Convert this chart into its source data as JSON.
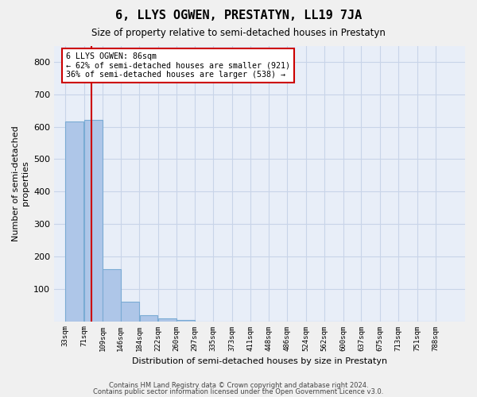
{
  "title": "6, LLYS OGWEN, PRESTATYN, LL19 7JA",
  "subtitle": "Size of property relative to semi-detached houses in Prestatyn",
  "xlabel": "Distribution of semi-detached houses by size in Prestatyn",
  "ylabel": "Number of semi-detached\nproperties",
  "bin_labels": [
    "33sqm",
    "71sqm",
    "109sqm",
    "146sqm",
    "184sqm",
    "222sqm",
    "260sqm",
    "297sqm",
    "335sqm",
    "373sqm",
    "411sqm",
    "448sqm",
    "486sqm",
    "524sqm",
    "562sqm",
    "600sqm",
    "637sqm",
    "675sqm",
    "713sqm",
    "751sqm",
    "788sqm"
  ],
  "bin_edges": [
    33,
    71,
    109,
    146,
    184,
    222,
    260,
    297,
    335,
    373,
    411,
    448,
    486,
    524,
    562,
    600,
    637,
    675,
    713,
    751,
    788
  ],
  "bar_heights": [
    615,
    620,
    160,
    60,
    18,
    8,
    3,
    0,
    0,
    0,
    0,
    0,
    0,
    0,
    0,
    0,
    0,
    0,
    0,
    0
  ],
  "bar_color": "#aec6e8",
  "bar_edge_color": "#7aabd4",
  "property_size": 86,
  "property_label": "6 LLYS OGWEN: 86sqm",
  "smaller_pct": "62%",
  "smaller_count": 921,
  "larger_pct": "36%",
  "larger_count": 538,
  "red_line_color": "#cc0000",
  "ylim": [
    0,
    850
  ],
  "yticks": [
    0,
    100,
    200,
    300,
    400,
    500,
    600,
    700,
    800
  ],
  "grid_color": "#c8d4e8",
  "bg_color": "#e8eef8",
  "fig_bg_color": "#f0f0f0",
  "footer1": "Contains HM Land Registry data © Crown copyright and database right 2024.",
  "footer2": "Contains public sector information licensed under the Open Government Licence v3.0."
}
